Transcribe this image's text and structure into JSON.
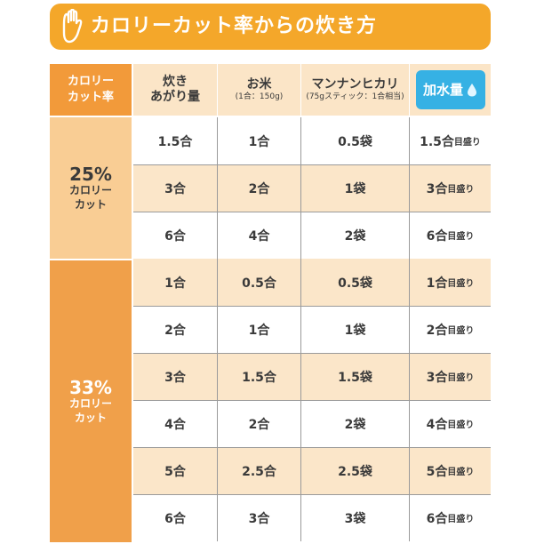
{
  "banner": {
    "title": "カロリーカット率からの炊き方",
    "icon": "hand-raised-icon"
  },
  "header": {
    "rate": [
      "カロリー",
      "カット率"
    ],
    "cooked": [
      "炊き",
      "あがり量"
    ],
    "rice": "お米",
    "rice_note": "(1合：150g)",
    "mannan": "マンナンヒカリ",
    "mannan_note": "(75gスティック：1合相当)",
    "water": "加水量",
    "water_icon": "water-drop-icon"
  },
  "sections": [
    {
      "percent": "25%",
      "label": [
        "カロリー",
        "カット"
      ]
    },
    {
      "percent": "33%",
      "label": [
        "カロリー",
        "カット"
      ]
    }
  ],
  "water_unit": "目盛り",
  "rows": [
    {
      "cooked": "1.5合",
      "rice": "1合",
      "mannan": "0.5袋",
      "water": "1.5合"
    },
    {
      "cooked": "3合",
      "rice": "2合",
      "mannan": "1袋",
      "water": "3合"
    },
    {
      "cooked": "6合",
      "rice": "4合",
      "mannan": "2袋",
      "water": "6合"
    },
    {
      "cooked": "1合",
      "rice": "0.5合",
      "mannan": "0.5袋",
      "water": "1合"
    },
    {
      "cooked": "2合",
      "rice": "1合",
      "mannan": "1袋",
      "water": "2合"
    },
    {
      "cooked": "3合",
      "rice": "1.5合",
      "mannan": "1.5袋",
      "water": "3合"
    },
    {
      "cooked": "4合",
      "rice": "2合",
      "mannan": "2袋",
      "water": "4合"
    },
    {
      "cooked": "5合",
      "rice": "2.5合",
      "mannan": "2.5袋",
      "water": "5合"
    },
    {
      "cooked": "6合",
      "rice": "3合",
      "mannan": "3袋",
      "water": "6合"
    }
  ],
  "colors": {
    "banner": "#f4a72a",
    "header_left": "#f29a3a",
    "header": "#fbe5c7",
    "section_25": "#f9cd94",
    "section_33": "#f0a04a",
    "row_alt": "#fbe6c9",
    "water_badge": "#36b1e4"
  }
}
